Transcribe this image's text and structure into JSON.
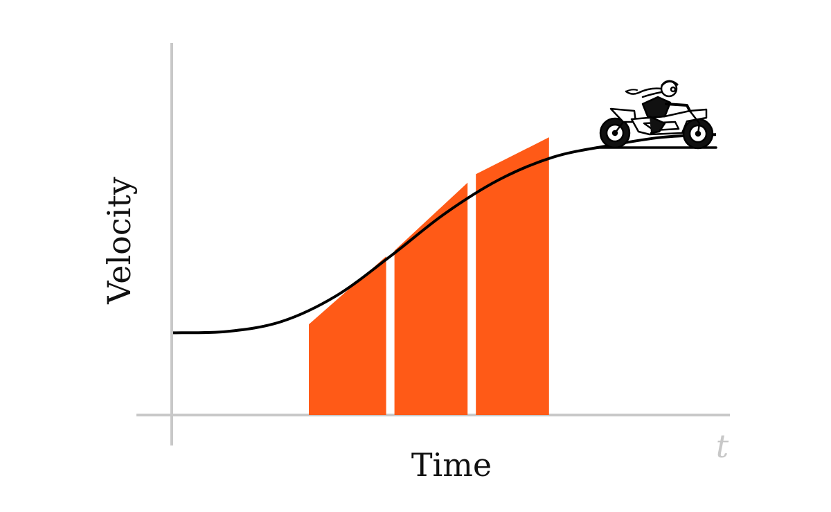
{
  "chart_data": {
    "type": "area",
    "xlabel": "Time",
    "ylabel": "Velocity",
    "x_axis_variable": "t",
    "grid": false,
    "legend": "none",
    "x_range": [
      0,
      10
    ],
    "y_range": [
      0,
      10
    ],
    "curve": {
      "kind": "logistic",
      "x": [
        0,
        1,
        2,
        3,
        4,
        5,
        6,
        7,
        8,
        9,
        10
      ],
      "y": [
        2.9,
        2.95,
        3.3,
        4.2,
        5.6,
        7.1,
        8.3,
        9.1,
        9.5,
        9.8,
        9.9
      ]
    },
    "riemann_rectangles": [
      {
        "x_start": 2.5,
        "x_end": 4.0,
        "left_value": 3.2,
        "right_value": 5.6
      },
      {
        "x_start": 4.0,
        "x_end": 5.5,
        "left_value": 5.8,
        "right_value": 8.2
      },
      {
        "x_start": 5.5,
        "x_end": 7.0,
        "left_value": 8.5,
        "right_value": 9.8
      }
    ],
    "colors": {
      "curve": "#000000",
      "fill": "#ff5a17",
      "axes": "#c8c8c8",
      "label": "#111111",
      "axis_variable": "#c8c8c8"
    },
    "illustration": "motorcycle-rider"
  }
}
